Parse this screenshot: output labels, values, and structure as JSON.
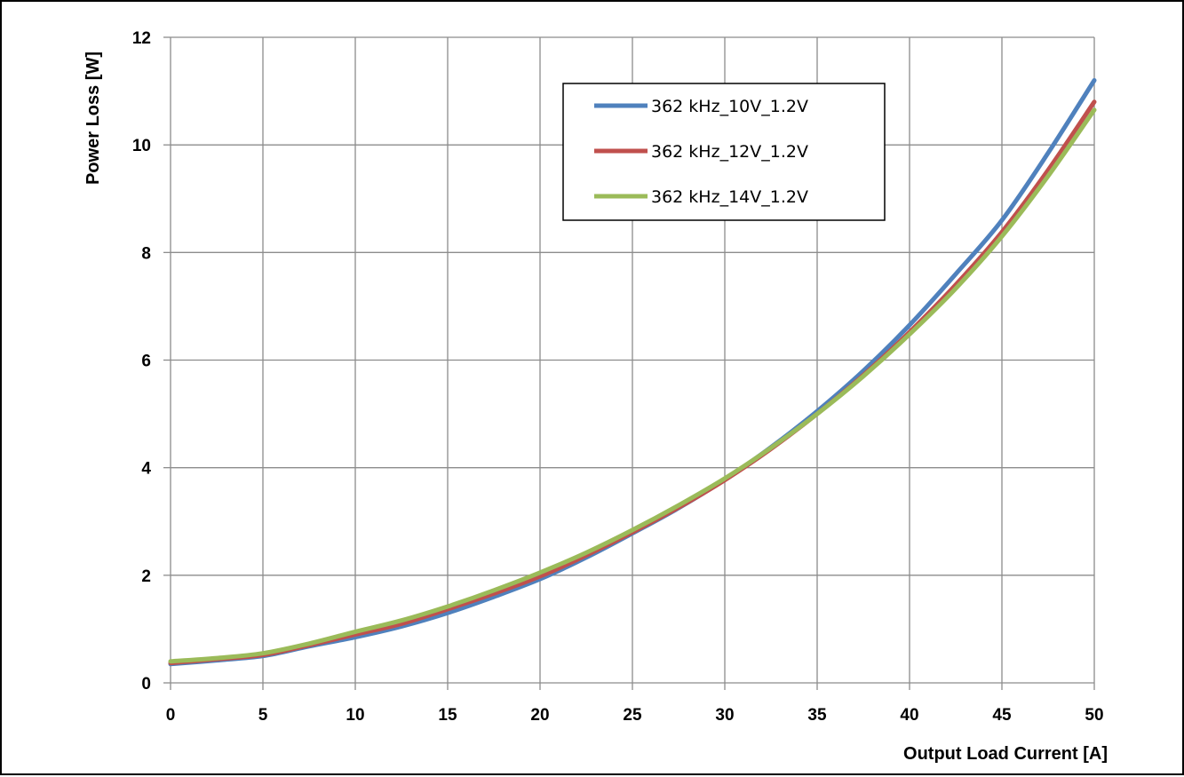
{
  "chart_data": {
    "type": "line",
    "xlabel": "Output Load Current [A]",
    "ylabel": "Power Loss [W]",
    "xlim": [
      0,
      50
    ],
    "ylim": [
      0,
      12
    ],
    "xticks": [
      0,
      5,
      10,
      15,
      20,
      25,
      30,
      35,
      40,
      45,
      50
    ],
    "yticks": [
      0,
      2,
      4,
      6,
      8,
      10,
      12
    ],
    "grid": true,
    "legend_position": "top-center",
    "series": [
      {
        "name": "362 kHz_10V_1.2V",
        "color": "#4f81bd",
        "x": [
          0,
          2.5,
          5,
          7.5,
          10,
          12.5,
          15,
          17.5,
          20,
          22.5,
          25,
          27.5,
          30,
          32.5,
          35,
          37.5,
          40,
          42.5,
          45,
          47.5,
          50
        ],
        "y": [
          0.35,
          0.42,
          0.5,
          0.68,
          0.85,
          1.05,
          1.3,
          1.6,
          1.93,
          2.33,
          2.78,
          3.25,
          3.78,
          4.38,
          5.05,
          5.8,
          6.65,
          7.6,
          8.6,
          9.85,
          11.2
        ]
      },
      {
        "name": "362 kHz_12V_1.2V",
        "color": "#c0504d",
        "x": [
          0,
          2.5,
          5,
          7.5,
          10,
          12.5,
          15,
          17.5,
          20,
          22.5,
          25,
          27.5,
          30,
          32.5,
          35,
          37.5,
          40,
          42.5,
          45,
          47.5,
          50
        ],
        "y": [
          0.37,
          0.44,
          0.52,
          0.7,
          0.9,
          1.1,
          1.37,
          1.66,
          1.98,
          2.37,
          2.8,
          3.26,
          3.77,
          4.35,
          5.0,
          5.72,
          6.52,
          7.4,
          8.38,
          9.53,
          10.8
        ]
      },
      {
        "name": "362 kHz_14V_1.2V",
        "color": "#9bbb59",
        "x": [
          0,
          2.5,
          5,
          7.5,
          10,
          12.5,
          15,
          17.5,
          20,
          22.5,
          25,
          27.5,
          30,
          32.5,
          35,
          37.5,
          40,
          42.5,
          45,
          47.5,
          50
        ],
        "y": [
          0.4,
          0.46,
          0.55,
          0.73,
          0.95,
          1.16,
          1.42,
          1.72,
          2.05,
          2.42,
          2.84,
          3.3,
          3.8,
          4.37,
          5.0,
          5.7,
          6.48,
          7.33,
          8.3,
          9.42,
          10.65
        ]
      }
    ]
  }
}
